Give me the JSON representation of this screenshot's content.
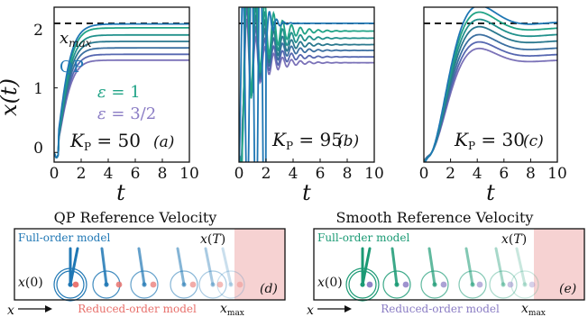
{
  "chart_data": [
    {
      "type": "line",
      "panel_label": "(a)",
      "gain_label": "K_P = 50",
      "gain_value": 50,
      "xlabel": "t",
      "ylabel": "x(t)",
      "xlim": [
        0,
        10
      ],
      "ylim": [
        -0.15,
        2.25
      ],
      "xticks": [
        "0",
        "2",
        "4",
        "6",
        "8",
        "10"
      ],
      "yticks": [
        "0",
        "1",
        "2"
      ],
      "reference_line": {
        "name": "x_max",
        "y": 2.0,
        "style": "dashed"
      },
      "annotations": [
        "x_max",
        "QP",
        "ε = 1",
        "ε = 3/2"
      ],
      "series": [
        {
          "name": "QP",
          "color": "#1f77b4",
          "final": 1.99,
          "x": [
            0,
            0.5,
            1,
            1.5,
            2,
            2.5,
            3,
            4,
            5,
            6,
            7,
            8,
            9,
            10
          ],
          "y": [
            0,
            0.05,
            0.62,
            1.3,
            1.75,
            1.93,
            1.98,
            1.99,
            1.99,
            1.99,
            1.99,
            1.99,
            1.99,
            1.99
          ]
        },
        {
          "name": "",
          "color": "#20a386",
          "final": 1.93
        },
        {
          "name": "",
          "color": "#21918c",
          "final": 1.82
        },
        {
          "name": "",
          "color": "#2a788e",
          "final": 1.72
        },
        {
          "name": "",
          "color": "#3b6fa0",
          "final": 1.62
        },
        {
          "name": "",
          "color": "#5667b0",
          "final": 1.52
        },
        {
          "name": "",
          "color": "#7b72b8",
          "final": 1.43
        }
      ]
    },
    {
      "type": "line",
      "panel_label": "(b)",
      "gain_label": "K_P = 95",
      "gain_value": 95,
      "xlabel": "t",
      "xlim": [
        0,
        10
      ],
      "ylim": [
        -0.15,
        2.25
      ],
      "xticks": [
        "0",
        "2",
        "4",
        "6",
        "8",
        "10"
      ],
      "reference_line": {
        "name": "x_max",
        "y": 2.0,
        "style": "dashed"
      },
      "series": [
        {
          "name": "QP",
          "color": "#1f77b4",
          "final": 2.0
        },
        {
          "name": "",
          "color": "#20a386",
          "final": 1.88
        },
        {
          "name": "",
          "color": "#21918c",
          "final": 1.77
        },
        {
          "name": "",
          "color": "#2a788e",
          "final": 1.67
        },
        {
          "name": "",
          "color": "#3b6fa0",
          "final": 1.58
        },
        {
          "name": "",
          "color": "#5667b0",
          "final": 1.48
        },
        {
          "name": "",
          "color": "#7b72b8",
          "final": 1.39
        }
      ]
    },
    {
      "type": "line",
      "panel_label": "(c)",
      "gain_label": "K_P = 30",
      "gain_value": 30,
      "xlabel": "t",
      "xlim": [
        0,
        10
      ],
      "ylim": [
        -0.15,
        2.25
      ],
      "xticks": [
        "0",
        "2",
        "4",
        "6",
        "8",
        "10"
      ],
      "reference_line": {
        "name": "x_max",
        "y": 2.0,
        "style": "dashed"
      },
      "series": [
        {
          "name": "QP",
          "color": "#1f77b4",
          "final": 2.02
        },
        {
          "name": "",
          "color": "#20a386",
          "final": 1.93
        },
        {
          "name": "",
          "color": "#21918c",
          "final": 1.83
        },
        {
          "name": "",
          "color": "#2a788e",
          "final": 1.73
        },
        {
          "name": "",
          "color": "#3b6fa0",
          "final": 1.62
        },
        {
          "name": "",
          "color": "#5667b0",
          "final": 1.52
        },
        {
          "name": "",
          "color": "#7b72b8",
          "final": 1.43
        }
      ]
    }
  ],
  "schematics": [
    {
      "title": "QP Reference Velocity",
      "panel_label": "(d)",
      "full_model_label": "Full-order model",
      "full_model_color": "#1f77b4",
      "reduced_model_label": "Reduced-order model",
      "reduced_model_color": "#e8706b",
      "start_label": "x(0)",
      "end_label": "x(T)",
      "limit_label": "x_max",
      "axis_label": "x",
      "unsafe_color": "#f6d2d2"
    },
    {
      "title": "Smooth Reference Velocity",
      "panel_label": "(e)",
      "full_model_label": "Full-order model",
      "full_model_color": "#1a9a74",
      "reduced_model_label": "Reduced-order model",
      "reduced_model_color": "#8a7cc4",
      "start_label": "x(0)",
      "end_label": "x(T)",
      "limit_label": "x_max",
      "axis_label": "x",
      "unsafe_color": "#f6d2d2"
    }
  ]
}
